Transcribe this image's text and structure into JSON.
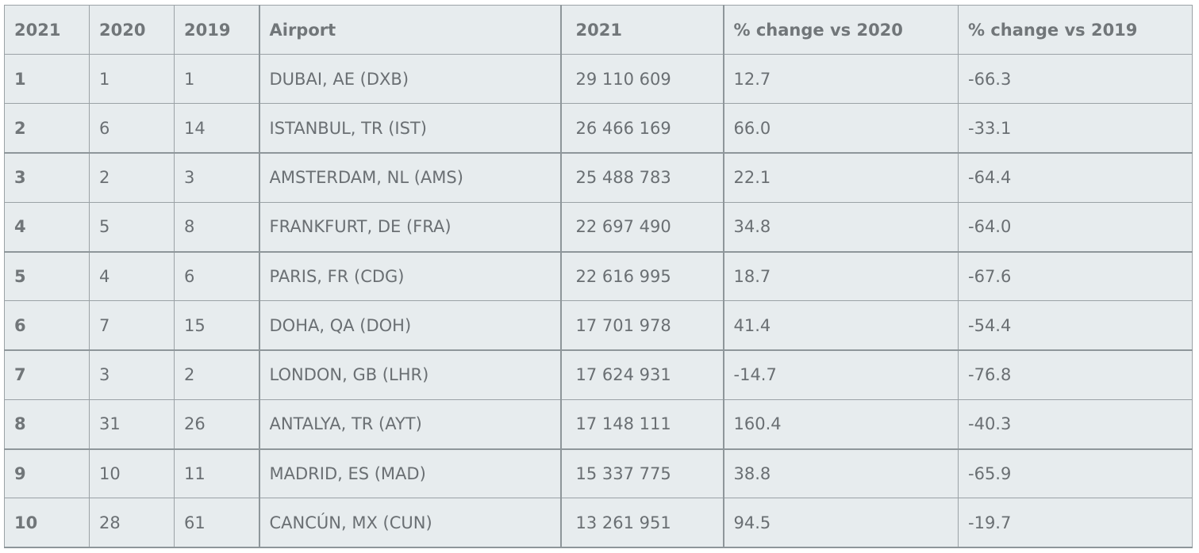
{
  "headers": [
    "2021",
    "2020",
    "2019",
    "Airport",
    "2021",
    "% change vs 2020",
    "% change vs 2019"
  ],
  "rows": [
    {
      "rank2021": "1",
      "rank2020": "1",
      "rank2019": "1",
      "airport": "DUBAI, AE (DXB)",
      "pax2021": "29 110 609",
      "chg2020": "12.7",
      "chg2019": "-66.3"
    },
    {
      "rank2021": "2",
      "rank2020": "6",
      "rank2019": "14",
      "airport": "ISTANBUL, TR (IST)",
      "pax2021": "26 466 169",
      "chg2020": "66.0",
      "chg2019": "-33.1"
    },
    {
      "rank2021": "3",
      "rank2020": "2",
      "rank2019": "3",
      "airport": "AMSTERDAM, NL (AMS)",
      "pax2021": "25 488 783",
      "chg2020": "22.1",
      "chg2019": "-64.4"
    },
    {
      "rank2021": "4",
      "rank2020": "5",
      "rank2019": "8",
      "airport": "FRANKFURT, DE (FRA)",
      "pax2021": "22 697 490",
      "chg2020": "34.8",
      "chg2019": "-64.0"
    },
    {
      "rank2021": "5",
      "rank2020": "4",
      "rank2019": "6",
      "airport": "PARIS, FR (CDG)",
      "pax2021": "22 616 995",
      "chg2020": "18.7",
      "chg2019": "-67.6"
    },
    {
      "rank2021": "6",
      "rank2020": "7",
      "rank2019": "15",
      "airport": "DOHA, QA (DOH)",
      "pax2021": "17 701 978",
      "chg2020": "41.4",
      "chg2019": "-54.4"
    },
    {
      "rank2021": "7",
      "rank2020": "3",
      "rank2019": "2",
      "airport": "LONDON, GB (LHR)",
      "pax2021": "17 624 931",
      "chg2020": "-14.7",
      "chg2019": "-76.8"
    },
    {
      "rank2021": "8",
      "rank2020": "31",
      "rank2019": "26",
      "airport": "ANTALYA, TR (AYT)",
      "pax2021": "17 148 111",
      "chg2020": "160.4",
      "chg2019": "-40.3"
    },
    {
      "rank2021": "9",
      "rank2020": "10",
      "rank2019": "11",
      "airport": "MADRID, ES (MAD)",
      "pax2021": "15 337 775",
      "chg2020": "38.8",
      "chg2019": "-65.9"
    },
    {
      "rank2021": "10",
      "rank2020": "28",
      "rank2019": "61",
      "airport": "CANCÚN, MX (CUN)",
      "pax2021": "13 261 951",
      "chg2020": "94.5",
      "chg2019": "-19.7"
    }
  ]
}
